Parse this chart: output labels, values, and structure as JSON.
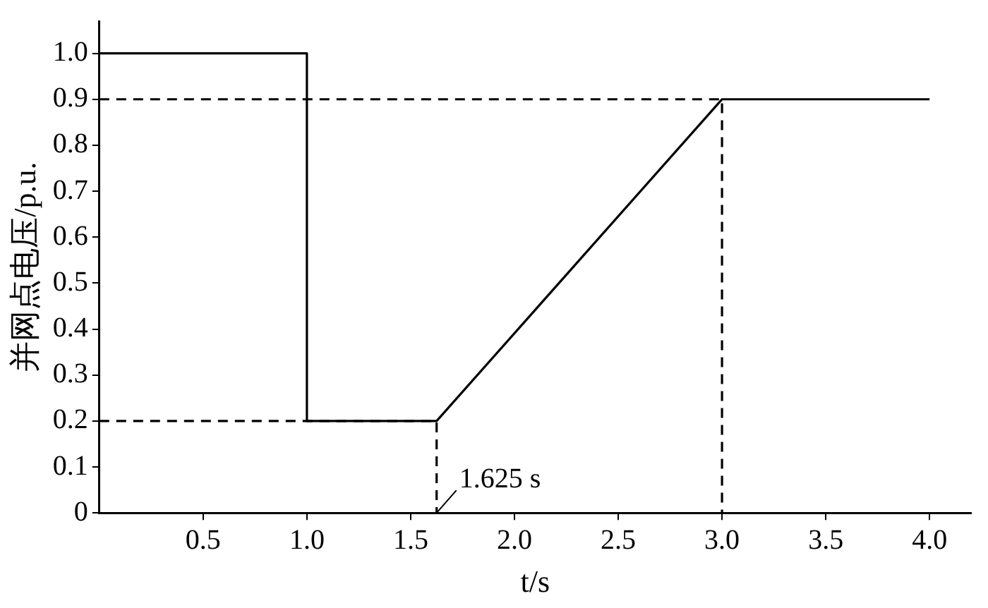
{
  "chart_data": {
    "type": "line",
    "xlabel": "t/s",
    "ylabel": "并网点电压/p.u.",
    "series": [
      {
        "color": "#000000",
        "x": [
          0,
          1,
          1,
          1.625,
          3,
          4
        ],
        "values": [
          1,
          1,
          0.2,
          0.2,
          0.9,
          0.9
        ],
        "line_style": "solid"
      },
      {
        "color": "#000000",
        "x": [
          0,
          3,
          3
        ],
        "values": [
          0.9,
          0.9,
          0
        ],
        "line_style": "dashed"
      },
      {
        "color": "#000000",
        "x": [
          0,
          1.625,
          1.625
        ],
        "values": [
          0.2,
          0.2,
          0
        ],
        "line_style": "dashed"
      }
    ],
    "xlim": [
      0,
      4.2
    ],
    "xticks": [
      {
        "value": 0.5,
        "label": "0.5"
      },
      {
        "value": 1,
        "label": "1.0"
      },
      {
        "value": 1.5,
        "label": "1.5"
      },
      {
        "value": 2,
        "label": "2.0"
      },
      {
        "value": 2.5,
        "label": "2.5"
      },
      {
        "value": 3,
        "label": "3.0"
      },
      {
        "value": 3.5,
        "label": "3.5"
      },
      {
        "value": 4,
        "label": "4.0"
      }
    ],
    "ylim": [
      0,
      1.07
    ],
    "yticks": [
      {
        "value": 0,
        "label": "0"
      },
      {
        "value": 0.1,
        "label": "0.1"
      },
      {
        "value": 0.2,
        "label": "0.2"
      },
      {
        "value": 0.3,
        "label": "0.3"
      },
      {
        "value": 0.4,
        "label": "0.4"
      },
      {
        "value": 0.5,
        "label": "0.5"
      },
      {
        "value": 0.6,
        "label": "0.6"
      },
      {
        "value": 0.7,
        "label": "0.7"
      },
      {
        "value": 0.8,
        "label": "0.8"
      },
      {
        "value": 0.9,
        "label": "0.9"
      },
      {
        "value": 1,
        "label": "1.0"
      }
    ],
    "annotations": [
      {
        "text": "1.625 s",
        "x": 1.625,
        "y": 0
      }
    ],
    "grid": false,
    "legend": false,
    "marker": "none"
  }
}
